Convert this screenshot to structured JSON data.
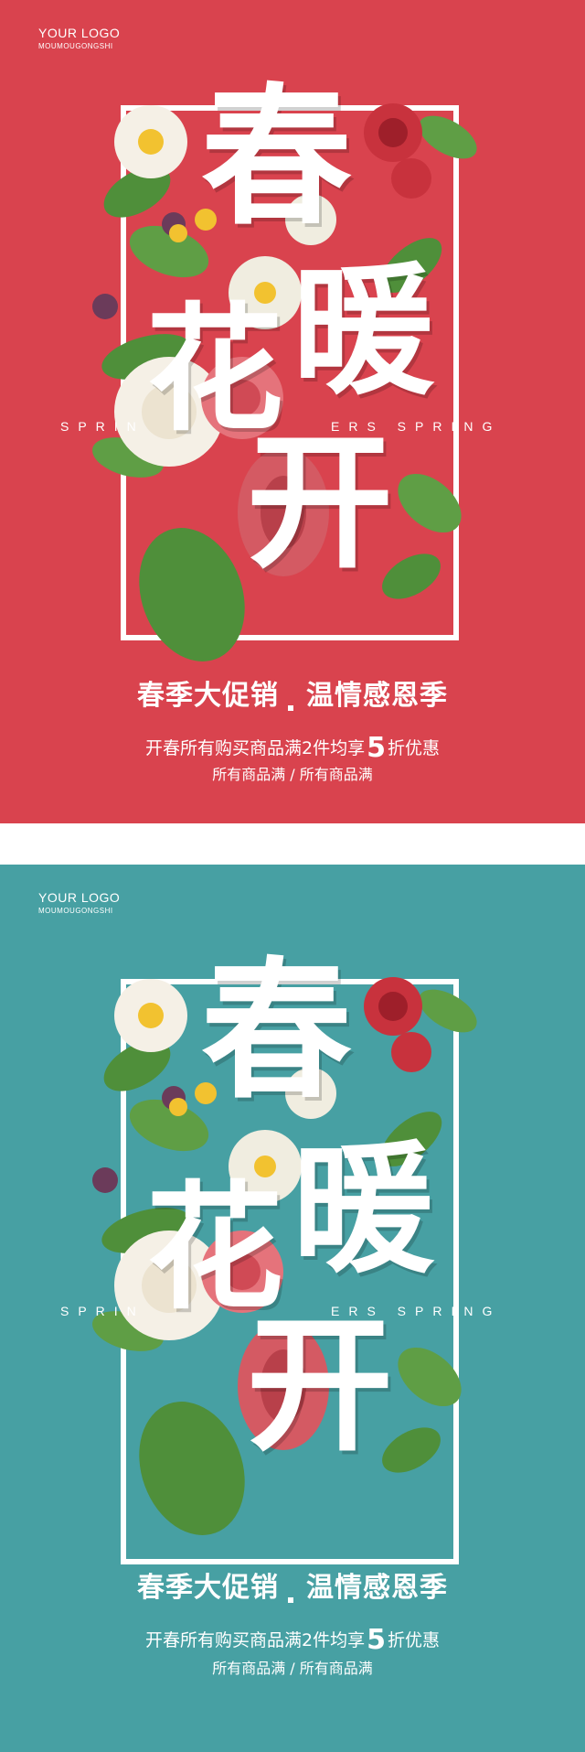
{
  "logo": {
    "main": "YOUR LOGO",
    "sub": "MOUMOUGONGSHI"
  },
  "title_chars": [
    "春",
    "暖",
    "花",
    "开"
  ],
  "spring": {
    "left": "SPRIN",
    "right": "ERS SPRING"
  },
  "headline": {
    "left": "春季大促销",
    "right": "温情感恩季"
  },
  "offer": {
    "prefix": "开春所有购买商品满2件均享",
    "number": "5",
    "suffix": "折优惠"
  },
  "offer_sub": "所有商品满 / 所有商品满",
  "colors": {
    "red_bg": "#d9434e",
    "teal_bg": "#47a0a3",
    "leaf": "#4f8f3a",
    "rose": "#c8323d",
    "white_flower": "#f5f0e6",
    "yellow": "#f2c230"
  },
  "icons": [
    "flower-bouquet-illustration"
  ]
}
